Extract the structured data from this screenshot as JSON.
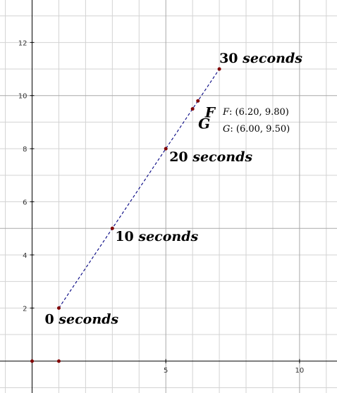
{
  "chart_data": {
    "type": "scatter",
    "xlim": [
      -1.2,
      11.4
    ],
    "ylim": [
      -1.2,
      13.6
    ],
    "grid": true,
    "minor_step": 1,
    "major_step": 5,
    "x_ticks": [
      5,
      10
    ],
    "y_ticks": [
      2,
      4,
      6,
      8,
      10,
      12
    ],
    "line_color": "#000080",
    "point_color": "#800000",
    "line": {
      "style": "dashed",
      "from": [
        1,
        2
      ],
      "to": [
        7,
        11
      ]
    },
    "points": [
      {
        "x": 1,
        "y": 2
      },
      {
        "x": 3,
        "y": 5
      },
      {
        "x": 5,
        "y": 8
      },
      {
        "x": 6,
        "y": 9.5
      },
      {
        "x": 6.2,
        "y": 9.8
      },
      {
        "x": 7,
        "y": 11
      },
      {
        "x": 0,
        "y": 0
      },
      {
        "x": 1,
        "y": 0
      }
    ],
    "annotations": [
      {
        "x": 1,
        "y": 2,
        "num": "0",
        "unit": "seconds"
      },
      {
        "x": 3,
        "y": 5,
        "num": "10",
        "unit": "seconds"
      },
      {
        "x": 5,
        "y": 8,
        "num": "20",
        "unit": "seconds"
      },
      {
        "x": 7,
        "y": 11,
        "num": "30",
        "unit": "seconds"
      }
    ],
    "labeled_points": [
      {
        "name": "F",
        "x": 6.2,
        "y": 9.8
      },
      {
        "name": "G",
        "x": 6.0,
        "y": 9.5
      }
    ],
    "coordinate_readouts": [
      {
        "name": "F",
        "value": ": (6.20, 9.80)"
      },
      {
        "name": "G",
        "value": ": (6.00, 9.50)"
      }
    ]
  }
}
